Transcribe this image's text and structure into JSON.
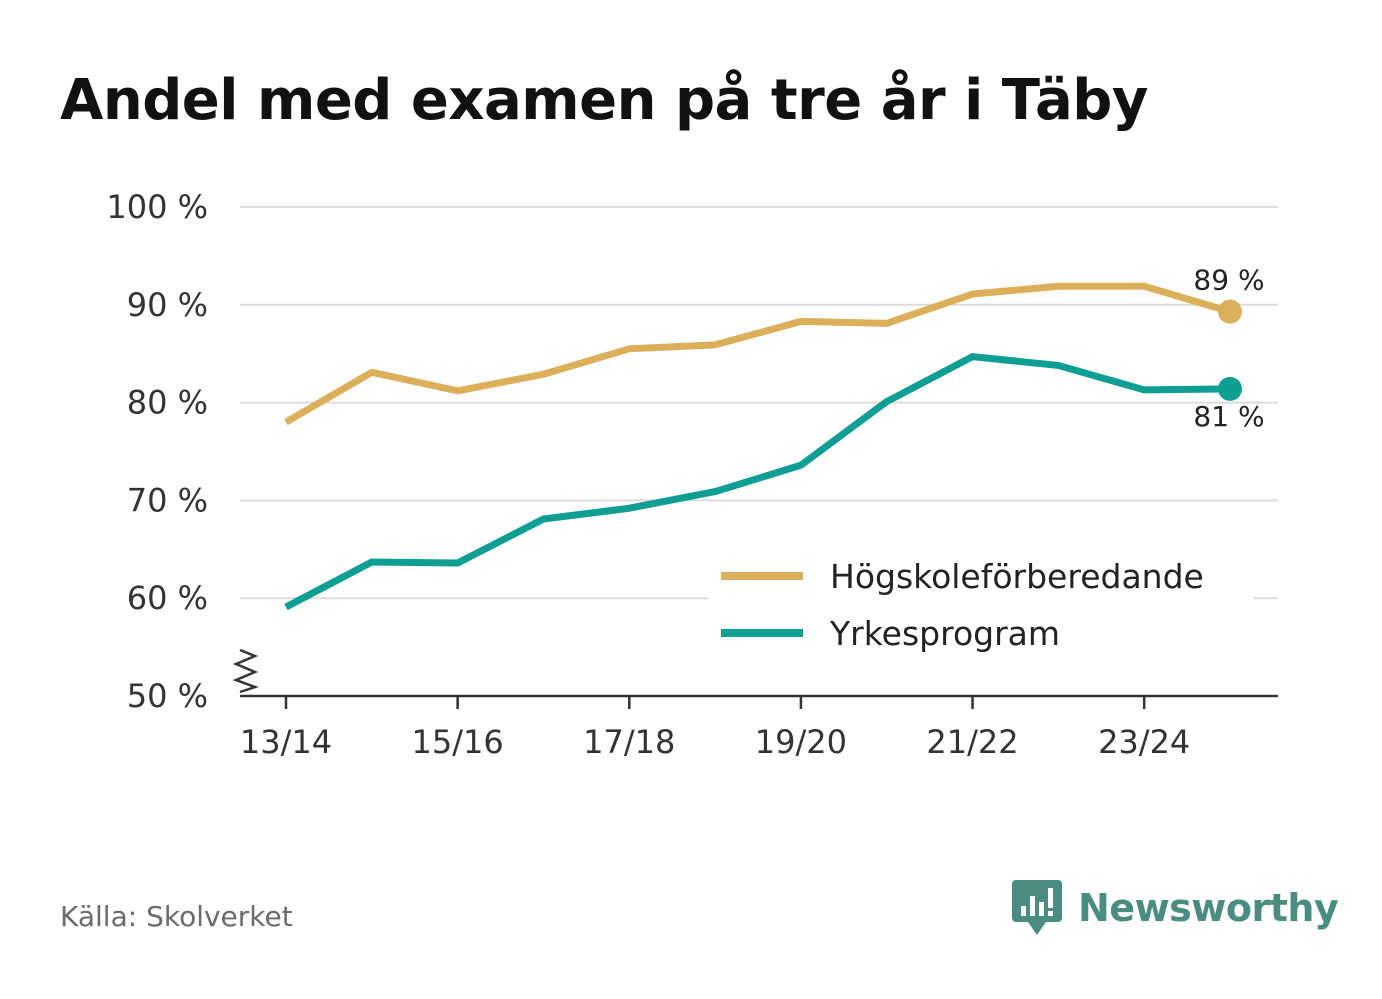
{
  "colors": {
    "hogskole": "#dcaf5a",
    "yrke": "#0e9e93",
    "grid": "#dcdcdc",
    "axis": "#333333",
    "brand": "#4a8c80"
  },
  "source_text": "Källa: Skolverket",
  "brand": {
    "name": "Newsworthy",
    "icon": "newsworthy-logo-icon"
  },
  "chart_data": {
    "type": "line",
    "title": "Andel med examen på tre år i Täby",
    "xlabel": "",
    "ylabel": "",
    "x": [
      "13/14",
      "14/15",
      "15/16",
      "16/17",
      "17/18",
      "18/19",
      "19/20",
      "20/21",
      "21/22",
      "22/23",
      "23/24",
      "24/25"
    ],
    "x_tick_labels": [
      {
        "index": 0,
        "label": "13/14"
      },
      {
        "index": 2,
        "label": "15/16"
      },
      {
        "index": 4,
        "label": "17/18"
      },
      {
        "index": 6,
        "label": "19/20"
      },
      {
        "index": 8,
        "label": "21/22"
      },
      {
        "index": 10,
        "label": "23/24"
      }
    ],
    "ylim": [
      50,
      100
    ],
    "y_ticks": [
      {
        "value": 50,
        "label": "50 %"
      },
      {
        "value": 60,
        "label": "60 %"
      },
      {
        "value": 70,
        "label": "70 %"
      },
      {
        "value": 80,
        "label": "80 %"
      },
      {
        "value": 90,
        "label": "90 %"
      },
      {
        "value": 100,
        "label": "100 %"
      }
    ],
    "axis_break": true,
    "grid": true,
    "legend_position": "bottom-right",
    "series": [
      {
        "name": "Högskoleförberedande",
        "color_key": "hogskole",
        "values": [
          78.0,
          83.1,
          81.2,
          82.9,
          85.5,
          85.9,
          88.3,
          88.1,
          91.1,
          91.9,
          91.9,
          89.3
        ],
        "end_label": "89 %",
        "end_label_position": "above"
      },
      {
        "name": "Yrkesprogram",
        "color_key": "yrke",
        "values": [
          59.1,
          63.7,
          63.6,
          68.1,
          69.2,
          70.9,
          73.6,
          80.1,
          84.7,
          83.8,
          81.3,
          81.4
        ],
        "end_label": "81 %",
        "end_label_position": "below"
      }
    ]
  }
}
